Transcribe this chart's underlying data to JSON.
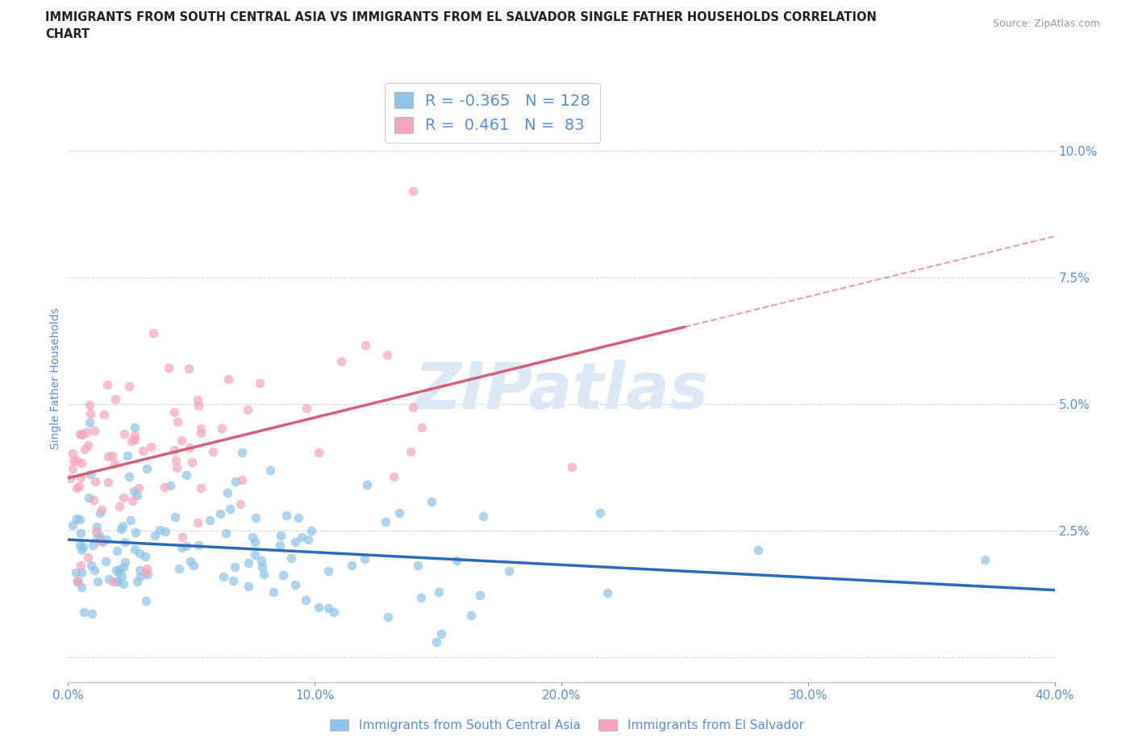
{
  "title_line1": "IMMIGRANTS FROM SOUTH CENTRAL ASIA VS IMMIGRANTS FROM EL SALVADOR SINGLE FATHER HOUSEHOLDS CORRELATION",
  "title_line2": "CHART",
  "source": "Source: ZipAtlas.com",
  "ylabel": "Single Father Households",
  "xlabel_blue": "Immigrants from South Central Asia",
  "xlabel_pink": "Immigrants from El Salvador",
  "R_blue": -0.365,
  "N_blue": 128,
  "R_pink": 0.461,
  "N_pink": 83,
  "xmin": 0.0,
  "xmax": 0.4,
  "ymin": -0.005,
  "ymax": 0.115,
  "yticks": [
    0.0,
    0.025,
    0.05,
    0.075,
    0.1
  ],
  "ytick_labels": [
    "",
    "2.5%",
    "5.0%",
    "7.5%",
    "10.0%"
  ],
  "xticks": [
    0.0,
    0.1,
    0.2,
    0.3,
    0.4
  ],
  "xtick_labels": [
    "0.0%",
    "10.0%",
    "20.0%",
    "30.0%",
    "40.0%"
  ],
  "blue_color": "#8ec4e8",
  "pink_color": "#f4a6ba",
  "blue_line_color": "#2b6cb8",
  "pink_line_color": "#d4607a",
  "axis_color": "#5b8dd9",
  "grid_color": "#d0d8e8",
  "watermark": "ZIPatlas",
  "watermark_color": "#dce8f5",
  "background_color": "#ffffff"
}
